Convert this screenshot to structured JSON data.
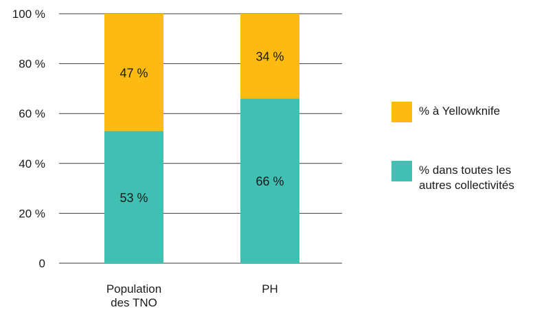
{
  "chart_data": {
    "type": "bar",
    "stacked": true,
    "categories": [
      "Population des TNO",
      "PH"
    ],
    "category_lines": [
      [
        "Population",
        "des TNO"
      ],
      [
        "PH"
      ]
    ],
    "series": [
      {
        "name": "% dans toutes les autres collectivités",
        "values": [
          53,
          66
        ],
        "labels": [
          "53 %",
          "66 %"
        ],
        "color": "#41bfb3"
      },
      {
        "name": "% à Yellowknife",
        "values": [
          47,
          34
        ],
        "labels": [
          "47 %",
          "34 %"
        ],
        "color": "#fcba12"
      }
    ],
    "yticks": [
      0,
      20,
      40,
      60,
      80,
      100
    ],
    "ytick_labels": [
      "0",
      "20 %",
      "40 %",
      "60 %",
      "80 %",
      "100 %"
    ],
    "ylim": [
      0,
      100
    ],
    "grid": true,
    "legend_position": "right",
    "title": "",
    "xlabel": "",
    "ylabel": ""
  },
  "legend": {
    "items": [
      {
        "label": "% à Yellowknife",
        "color": "#fcba12"
      },
      {
        "label": "% dans toutes les autres collectivités",
        "color": "#41bfb3"
      }
    ]
  }
}
